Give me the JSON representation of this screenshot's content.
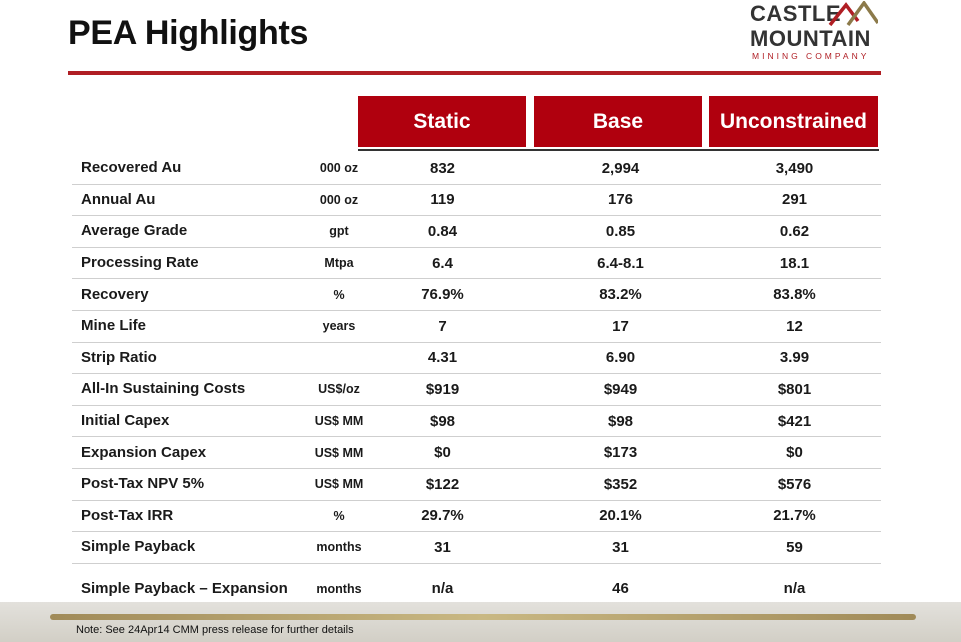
{
  "title": "PEA Highlights",
  "logo": {
    "line1": "CASTLE",
    "line2": "MOUNTAIN",
    "sub": "MINING COMPANY"
  },
  "columns": [
    "Static",
    "Base",
    "Unconstrained"
  ],
  "rows": [
    {
      "label": "Recovered Au",
      "unit": "000 oz",
      "values": [
        "832",
        "2,994",
        "3,490"
      ]
    },
    {
      "label": "Annual Au",
      "unit": "000 oz",
      "values": [
        "119",
        "176",
        "291"
      ]
    },
    {
      "label": "Average Grade",
      "unit": "gpt",
      "values": [
        "0.84",
        "0.85",
        "0.62"
      ]
    },
    {
      "label": "Processing Rate",
      "unit": "Mtpa",
      "values": [
        "6.4",
        "6.4-8.1",
        "18.1"
      ]
    },
    {
      "label": "Recovery",
      "unit": "%",
      "values": [
        "76.9%",
        "83.2%",
        "83.8%"
      ]
    },
    {
      "label": "Mine Life",
      "unit": "years",
      "values": [
        "7",
        "17",
        "12"
      ]
    },
    {
      "label": "Strip Ratio",
      "unit": "",
      "values": [
        "4.31",
        "6.90",
        "3.99"
      ]
    },
    {
      "label": "All-In Sustaining Costs",
      "unit": "US$/oz",
      "values": [
        "$919",
        "$949",
        "$801"
      ]
    },
    {
      "label": "Initial Capex",
      "unit": "US$ MM",
      "values": [
        "$98",
        "$98",
        "$421"
      ]
    },
    {
      "label": "Expansion Capex",
      "unit": "US$  MM",
      "values": [
        "$0",
        "$173",
        "$0"
      ]
    },
    {
      "label": "Post-Tax NPV 5%",
      "unit": "US$ MM",
      "values": [
        "$122",
        "$352",
        "$576"
      ]
    },
    {
      "label": "Post-Tax IRR",
      "unit": "%",
      "values": [
        "29.7%",
        "20.1%",
        "21.7%"
      ]
    },
    {
      "label": "Simple Payback",
      "unit": "months",
      "values": [
        "31",
        "31",
        "59"
      ]
    },
    {
      "label": "Simple Payback – Expansion",
      "unit": "months",
      "values": [
        "n/a",
        "46",
        "n/a"
      ]
    }
  ],
  "note": "Note: See 24Apr14 CMM press release for further details",
  "colors": {
    "accent": "#b0000e",
    "rule": "#b01e24",
    "footer_bar": "#b8a46f"
  }
}
